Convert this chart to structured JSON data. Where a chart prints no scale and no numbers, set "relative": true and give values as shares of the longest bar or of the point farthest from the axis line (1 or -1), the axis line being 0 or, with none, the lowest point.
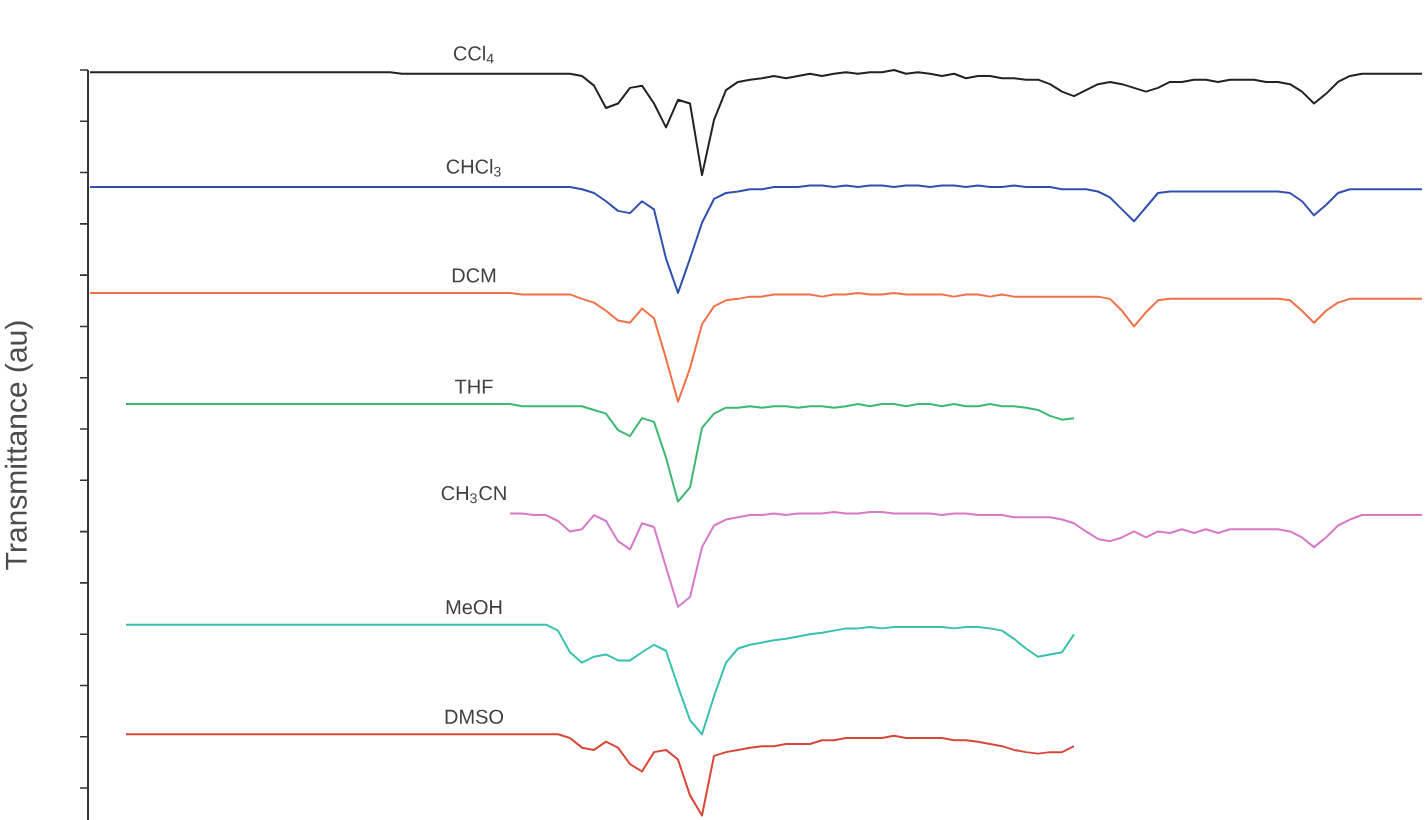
{
  "chart_data": {
    "type": "line",
    "relative": true,
    "ylabel": "Transmittance (au)",
    "categories": [
      null,
      null,
      null,
      null,
      null,
      null,
      null,
      null,
      null,
      null,
      null,
      null,
      null,
      null,
      null,
      null,
      null,
      null,
      null,
      null,
      null,
      null,
      null,
      null,
      null,
      null,
      null,
      null,
      null,
      null,
      null,
      null,
      null,
      null,
      null,
      null,
      null,
      null,
      null,
      null,
      null,
      null,
      null,
      null,
      null,
      null,
      null,
      null,
      null,
      null,
      null,
      null,
      null,
      null,
      null,
      null,
      null,
      null,
      null,
      null,
      null,
      null,
      null,
      null,
      null,
      null,
      null,
      null,
      null,
      null,
      null,
      null,
      null,
      null,
      null,
      null,
      null,
      null,
      null,
      null,
      null,
      null,
      null,
      null,
      null,
      null,
      null,
      null,
      null,
      null,
      null,
      null,
      null,
      null,
      null,
      null,
      null,
      null,
      null,
      null,
      null,
      null,
      null,
      null,
      null,
      null,
      null,
      null,
      null,
      null,
      null,
      null
    ],
    "series": [
      {
        "name": "CCl$_{4}$",
        "color": "#222222",
        "values": [
          0.997,
          0.997,
          0.997,
          0.997,
          0.997,
          0.997,
          0.997,
          0.997,
          0.997,
          0.997,
          0.997,
          0.997,
          0.997,
          0.997,
          0.997,
          0.997,
          0.997,
          0.997,
          0.997,
          0.997,
          0.997,
          0.997,
          0.997,
          0.997,
          0.997,
          0.997,
          0.995,
          0.995,
          0.995,
          0.995,
          0.995,
          0.995,
          0.995,
          0.995,
          0.995,
          0.995,
          0.995,
          0.995,
          0.995,
          0.995,
          0.995,
          0.992,
          0.979,
          0.949,
          0.955,
          0.976,
          0.979,
          0.955,
          0.923,
          0.96,
          0.955,
          0.859,
          0.933,
          0.973,
          0.984,
          0.987,
          0.989,
          0.992,
          0.989,
          0.992,
          0.995,
          0.992,
          0.995,
          0.997,
          0.995,
          0.997,
          0.997,
          1.0,
          0.995,
          0.997,
          0.995,
          0.992,
          0.995,
          0.989,
          0.992,
          0.992,
          0.989,
          0.989,
          0.987,
          0.987,
          0.981,
          0.971,
          0.965,
          0.973,
          0.981,
          0.984,
          0.981,
          0.976,
          0.971,
          0.976,
          0.984,
          0.984,
          0.987,
          0.987,
          0.984,
          0.987,
          0.987,
          0.987,
          0.984,
          0.984,
          0.981,
          0.971,
          0.955,
          0.968,
          0.984,
          0.992,
          0.995,
          0.995,
          0.995,
          0.995,
          0.995,
          0.995
        ]
      },
      {
        "name": "CHCl$_{3}$",
        "color": "#3050b0",
        "values": [
          0.843,
          0.843,
          0.843,
          0.843,
          0.843,
          0.843,
          0.843,
          0.843,
          0.843,
          0.843,
          0.843,
          0.843,
          0.843,
          0.843,
          0.843,
          0.843,
          0.843,
          0.843,
          0.843,
          0.843,
          0.843,
          0.843,
          0.843,
          0.843,
          0.843,
          0.843,
          0.843,
          0.843,
          0.843,
          0.843,
          0.843,
          0.843,
          0.843,
          0.843,
          0.843,
          0.843,
          0.843,
          0.843,
          0.843,
          0.843,
          0.843,
          0.84,
          0.835,
          0.824,
          0.811,
          0.808,
          0.824,
          0.813,
          0.747,
          0.701,
          0.747,
          0.795,
          0.827,
          0.835,
          0.837,
          0.84,
          0.84,
          0.843,
          0.843,
          0.843,
          0.845,
          0.845,
          0.843,
          0.845,
          0.843,
          0.845,
          0.845,
          0.843,
          0.845,
          0.845,
          0.843,
          0.845,
          0.845,
          0.843,
          0.845,
          0.843,
          0.843,
          0.845,
          0.843,
          0.843,
          0.843,
          0.84,
          0.84,
          0.84,
          0.837,
          0.829,
          0.813,
          0.797,
          0.816,
          0.835,
          0.837,
          0.837,
          0.837,
          0.837,
          0.837,
          0.837,
          0.837,
          0.837,
          0.837,
          0.837,
          0.835,
          0.824,
          0.805,
          0.819,
          0.835,
          0.84,
          0.84,
          0.84,
          0.84,
          0.84,
          0.84,
          0.84
        ]
      },
      {
        "name": "DCM",
        "color": "#f07048",
        "values": [
          0.701,
          0.701,
          0.701,
          0.701,
          0.701,
          0.701,
          0.701,
          0.701,
          0.701,
          0.701,
          0.701,
          0.701,
          0.701,
          0.701,
          0.701,
          0.701,
          0.701,
          0.701,
          0.701,
          0.701,
          0.701,
          0.701,
          0.701,
          0.701,
          0.701,
          0.701,
          0.701,
          0.701,
          0.701,
          0.701,
          0.701,
          0.701,
          0.701,
          0.701,
          0.701,
          0.701,
          0.699,
          0.699,
          0.699,
          0.699,
          0.699,
          0.693,
          0.688,
          0.677,
          0.664,
          0.661,
          0.68,
          0.667,
          0.613,
          0.555,
          0.6,
          0.659,
          0.683,
          0.691,
          0.693,
          0.696,
          0.696,
          0.699,
          0.699,
          0.699,
          0.699,
          0.696,
          0.699,
          0.699,
          0.701,
          0.699,
          0.699,
          0.701,
          0.699,
          0.699,
          0.699,
          0.699,
          0.696,
          0.699,
          0.699,
          0.696,
          0.699,
          0.696,
          0.696,
          0.696,
          0.696,
          0.696,
          0.696,
          0.696,
          0.696,
          0.693,
          0.677,
          0.656,
          0.675,
          0.691,
          0.693,
          0.693,
          0.693,
          0.693,
          0.693,
          0.693,
          0.693,
          0.693,
          0.693,
          0.693,
          0.691,
          0.677,
          0.661,
          0.677,
          0.688,
          0.693,
          0.693,
          0.693,
          0.693,
          0.693,
          0.693,
          0.693
        ]
      },
      {
        "name": "THF",
        "color": "#3cb870",
        "values": [
          null,
          null,
          null,
          0.552,
          0.552,
          0.552,
          0.552,
          0.552,
          0.552,
          0.552,
          0.552,
          0.552,
          0.552,
          0.552,
          0.552,
          0.552,
          0.552,
          0.552,
          0.552,
          0.552,
          0.552,
          0.552,
          0.552,
          0.552,
          0.552,
          0.552,
          0.552,
          0.552,
          0.552,
          0.552,
          0.552,
          0.552,
          0.552,
          0.552,
          0.552,
          0.552,
          0.549,
          0.549,
          0.549,
          0.549,
          0.549,
          0.549,
          0.544,
          0.539,
          0.517,
          0.509,
          0.533,
          0.528,
          0.48,
          0.421,
          0.44,
          0.52,
          0.539,
          0.547,
          0.547,
          0.549,
          0.547,
          0.549,
          0.549,
          0.547,
          0.549,
          0.549,
          0.547,
          0.549,
          0.552,
          0.549,
          0.552,
          0.552,
          0.549,
          0.552,
          0.552,
          0.549,
          0.552,
          0.549,
          0.549,
          0.552,
          0.549,
          0.549,
          0.547,
          0.544,
          0.536,
          0.531,
          0.533,
          null,
          null,
          null,
          null,
          null,
          null,
          null,
          null,
          null,
          null,
          null,
          null,
          null,
          null,
          null,
          null,
          null,
          null,
          null,
          null,
          null,
          null,
          null,
          null,
          null,
          null,
          null,
          null,
          null
        ]
      },
      {
        "name": "CH$_{3}$CN",
        "color": "#d878c8",
        "values": [
          null,
          null,
          null,
          null,
          null,
          null,
          null,
          null,
          null,
          null,
          null,
          null,
          null,
          null,
          null,
          null,
          null,
          null,
          null,
          null,
          null,
          null,
          null,
          null,
          null,
          null,
          null,
          null,
          null,
          null,
          null,
          null,
          null,
          null,
          null,
          0.405,
          0.405,
          0.403,
          0.403,
          0.395,
          0.381,
          0.384,
          0.403,
          0.395,
          0.368,
          0.357,
          0.392,
          0.387,
          0.333,
          0.28,
          0.293,
          0.36,
          0.389,
          0.397,
          0.4,
          0.403,
          0.403,
          0.405,
          0.403,
          0.405,
          0.405,
          0.405,
          0.407,
          0.405,
          0.405,
          0.407,
          0.407,
          0.405,
          0.405,
          0.405,
          0.405,
          0.403,
          0.405,
          0.405,
          0.403,
          0.403,
          0.403,
          0.4,
          0.4,
          0.4,
          0.4,
          0.397,
          0.392,
          0.381,
          0.371,
          0.368,
          0.373,
          0.381,
          0.373,
          0.381,
          0.379,
          0.384,
          0.379,
          0.384,
          0.379,
          0.384,
          0.384,
          0.384,
          0.384,
          0.384,
          0.381,
          0.373,
          0.36,
          0.373,
          0.389,
          0.397,
          0.403,
          0.403,
          0.403,
          0.403,
          0.403,
          0.403
        ]
      },
      {
        "name": "MeOH",
        "color": "#38c0b0",
        "values": [
          null,
          null,
          null,
          0.256,
          0.256,
          0.256,
          0.256,
          0.256,
          0.256,
          0.256,
          0.256,
          0.256,
          0.256,
          0.256,
          0.256,
          0.256,
          0.256,
          0.256,
          0.256,
          0.256,
          0.256,
          0.256,
          0.256,
          0.256,
          0.256,
          0.256,
          0.256,
          0.256,
          0.256,
          0.256,
          0.256,
          0.256,
          0.256,
          0.256,
          0.256,
          0.256,
          0.256,
          0.256,
          0.256,
          0.248,
          0.219,
          0.205,
          0.213,
          0.216,
          0.208,
          0.208,
          0.219,
          0.229,
          0.221,
          0.173,
          0.128,
          0.109,
          0.16,
          0.205,
          0.224,
          0.229,
          0.232,
          0.235,
          0.237,
          0.24,
          0.243,
          0.245,
          0.248,
          0.251,
          0.251,
          0.253,
          0.251,
          0.253,
          0.253,
          0.253,
          0.253,
          0.253,
          0.251,
          0.253,
          0.253,
          0.251,
          0.248,
          0.237,
          0.224,
          0.213,
          0.216,
          0.219,
          0.243,
          null,
          null,
          null,
          null,
          null,
          null,
          null,
          null,
          null,
          null,
          null,
          null,
          null,
          null,
          null,
          null,
          null,
          null,
          null,
          null,
          null,
          null,
          null,
          null,
          null,
          null,
          null,
          null,
          null
        ]
      },
      {
        "name": "DMSO",
        "color": "#d84838",
        "values": [
          null,
          null,
          null,
          0.109,
          0.109,
          0.109,
          0.109,
          0.109,
          0.109,
          0.109,
          0.109,
          0.109,
          0.109,
          0.109,
          0.109,
          0.109,
          0.109,
          0.109,
          0.109,
          0.109,
          0.109,
          0.109,
          0.109,
          0.109,
          0.109,
          0.109,
          0.109,
          0.109,
          0.109,
          0.109,
          0.109,
          0.109,
          0.109,
          0.109,
          0.109,
          0.109,
          0.109,
          0.109,
          0.109,
          0.109,
          0.104,
          0.091,
          0.088,
          0.099,
          0.091,
          0.069,
          0.059,
          0.085,
          0.088,
          0.075,
          0.027,
          0,
          0.08,
          0.085,
          0.088,
          0.091,
          0.093,
          0.093,
          0.096,
          0.096,
          0.096,
          0.101,
          0.101,
          0.104,
          0.104,
          0.104,
          0.104,
          0.107,
          0.104,
          0.104,
          0.104,
          0.104,
          0.101,
          0.101,
          0.099,
          0.096,
          0.093,
          0.088,
          0.085,
          0.083,
          0.085,
          0.085,
          0.093,
          null,
          null,
          null,
          null,
          null,
          null,
          null,
          null,
          null,
          null,
          null,
          null,
          null,
          null,
          null,
          null,
          null,
          null,
          null,
          null,
          null,
          null,
          null,
          null,
          null,
          null,
          null,
          null,
          null
        ]
      }
    ]
  }
}
